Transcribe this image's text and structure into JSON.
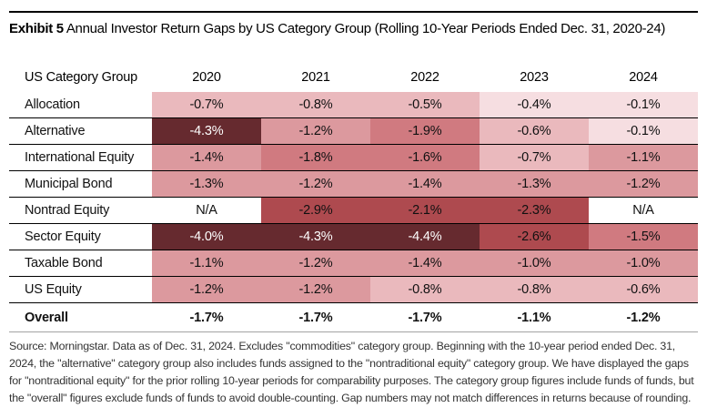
{
  "title": {
    "exhibit": "Exhibit 5",
    "text": " Annual Investor Return Gaps by US Category Group (Rolling 10-Year Periods Ended Dec. 31, 2020-24)"
  },
  "chart_data": {
    "type": "heatmap",
    "title": "Annual Investor Return Gaps by US Category Group (Rolling 10-Year Periods Ended Dec. 31, 2020-24)",
    "row_header": "US Category Group",
    "columns": [
      "2020",
      "2021",
      "2022",
      "2023",
      "2024"
    ],
    "unit": "%",
    "na_label": "N/A",
    "rows": [
      {
        "label": "Allocation",
        "values": [
          -0.7,
          -0.8,
          -0.5,
          -0.4,
          -0.1
        ]
      },
      {
        "label": "Alternative",
        "values": [
          -4.3,
          -1.2,
          -1.9,
          -0.6,
          -0.1
        ]
      },
      {
        "label": "International Equity",
        "values": [
          -1.4,
          -1.8,
          -1.6,
          -0.7,
          -1.1
        ]
      },
      {
        "label": "Municipal Bond",
        "values": [
          -1.3,
          -1.2,
          -1.4,
          -1.3,
          -1.2
        ]
      },
      {
        "label": "Nontrad Equity",
        "values": [
          null,
          -2.9,
          -2.1,
          -2.3,
          null
        ]
      },
      {
        "label": "Sector Equity",
        "values": [
          -4.0,
          -4.3,
          -4.4,
          -2.6,
          -1.5
        ]
      },
      {
        "label": "Taxable Bond",
        "values": [
          -1.1,
          -1.2,
          -1.4,
          -1.0,
          -1.0
        ]
      },
      {
        "label": "US Equity",
        "values": [
          -1.2,
          -1.2,
          -0.8,
          -0.8,
          -0.6
        ]
      }
    ],
    "overall": {
      "label": "Overall",
      "values": [
        -1.7,
        -1.7,
        -1.7,
        -1.1,
        -1.2
      ]
    },
    "legend_position": "none",
    "grid": "horizontal-rules-only"
  },
  "colors": {
    "heat_scale": [
      {
        "max_abs": 0.45,
        "bg": "#f6dee1",
        "text": "#111111"
      },
      {
        "max_abs": 0.95,
        "bg": "#eab9bd",
        "text": "#111111"
      },
      {
        "max_abs": 1.45,
        "bg": "#dc999e",
        "text": "#111111"
      },
      {
        "max_abs": 1.95,
        "bg": "#d07a80",
        "text": "#111111"
      },
      {
        "max_abs": 3.5,
        "bg": "#ae4a4f",
        "text": "#111111"
      },
      {
        "max_abs": 99.0,
        "bg": "#662a2f",
        "text": "#ffffff"
      }
    ],
    "na_bg": "#ffffff",
    "rule_black": "#000000",
    "rule_gray": "#a3a3a3"
  },
  "source": "Source: Morningstar. Data as of Dec. 31, 2024. Excludes \"commodities\" category group. Beginning with the 10-year period ended Dec. 31, 2024, the \"alternative\" category group also includes funds assigned to the \"nontraditional equity\" category group. We have displayed the gaps for \"nontraditional equity\" for the prior rolling 10-year periods for comparability purposes. The category group figures include funds of funds, but the \"overall\" figures exclude funds of funds to avoid double-counting. Gap numbers may not match differences in returns because of rounding."
}
